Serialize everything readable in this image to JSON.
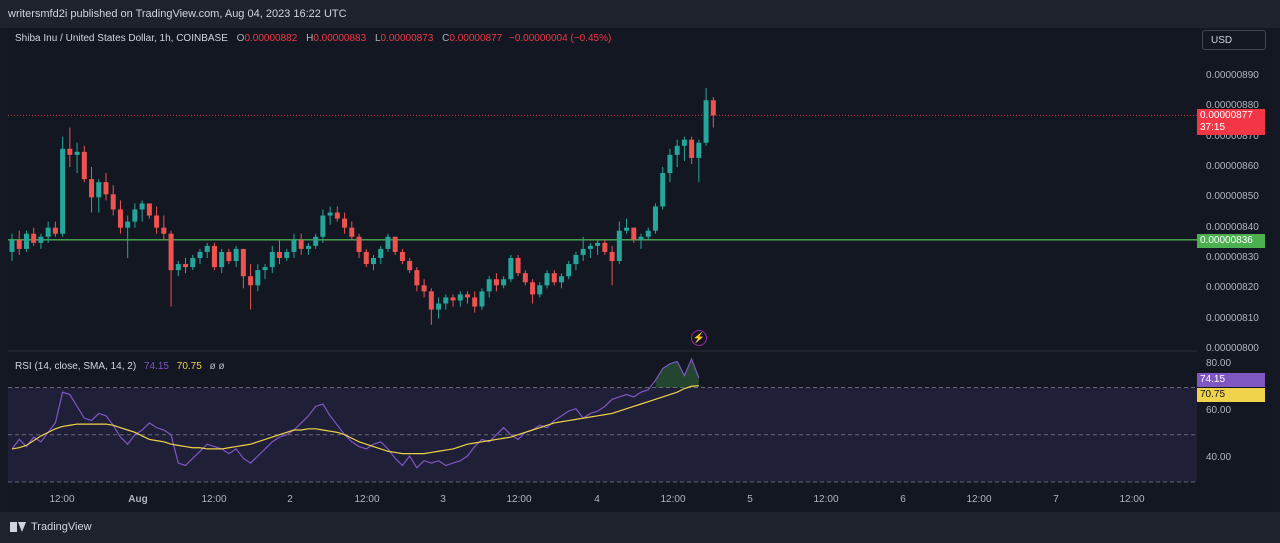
{
  "publish_line": "writersmfd2i published on TradingView.com, Aug 04, 2023 16:22 UTC",
  "legend": {
    "symbol": "Shiba Inu / United States Dollar, 1h, COINBASE",
    "o_label": "O",
    "o": "0.00000882",
    "h_label": "H",
    "h": "0.00000883",
    "l_label": "L",
    "l": "0.00000873",
    "c_label": "C",
    "c": "0.00000877",
    "change": "−0.00000004 (−0.45%)"
  },
  "currency_button": "USD",
  "price_tags": {
    "last": "0.00000877",
    "countdown": "37:15",
    "line": "0.00000836"
  },
  "rsi_legend": {
    "title": "RSI (14, close, SMA, 14, 2)",
    "rsi": "74.15",
    "sma": "70.75",
    "extra": "ø ø"
  },
  "rsi_tags": {
    "rsi": "74.15",
    "sma": "70.75"
  },
  "footer_logo": "TradingView",
  "flash_icon": "lightning-icon",
  "colors": {
    "up": "#26a69a",
    "down": "#ef5350",
    "horizontal_line": "#4caf50",
    "rsi": "#7e57c2",
    "rsi_ma": "#f0d34a",
    "rsi_band": "#2a2748"
  },
  "chart_data": [
    {
      "type": "candlestick",
      "y_ticks": [
        "0.00000890",
        "0.00000880",
        "0.00000870",
        "0.00000860",
        "0.00000850",
        "0.00000840",
        "0.00000830",
        "0.00000820",
        "0.00000810",
        "0.00000800"
      ],
      "ylim": [
        8e-06,
        8.9e-06
      ],
      "x_ticks": [
        "12:00",
        "Aug",
        "12:00",
        "2",
        "12:00",
        "3",
        "12:00",
        "4",
        "12:00",
        "5",
        "12:00",
        "6",
        "12:00",
        "7",
        "12:00"
      ],
      "horizontal_line": 8.36e-06,
      "last_price": 8.77e-06,
      "candles": [
        {
          "o": 8.32,
          "h": 8.38,
          "l": 8.29,
          "c": 8.36
        },
        {
          "o": 8.36,
          "h": 8.39,
          "l": 8.31,
          "c": 8.33
        },
        {
          "o": 8.33,
          "h": 8.39,
          "l": 8.32,
          "c": 8.38
        },
        {
          "o": 8.38,
          "h": 8.4,
          "l": 8.34,
          "c": 8.35
        },
        {
          "o": 8.35,
          "h": 8.38,
          "l": 8.33,
          "c": 8.37
        },
        {
          "o": 8.37,
          "h": 8.42,
          "l": 8.35,
          "c": 8.4
        },
        {
          "o": 8.4,
          "h": 8.42,
          "l": 8.37,
          "c": 8.38
        },
        {
          "o": 8.38,
          "h": 8.7,
          "l": 8.37,
          "c": 8.66
        },
        {
          "o": 8.66,
          "h": 8.73,
          "l": 8.6,
          "c": 8.64
        },
        {
          "o": 8.64,
          "h": 8.68,
          "l": 8.58,
          "c": 8.65
        },
        {
          "o": 8.65,
          "h": 8.67,
          "l": 8.55,
          "c": 8.56
        },
        {
          "o": 8.56,
          "h": 8.6,
          "l": 8.45,
          "c": 8.5
        },
        {
          "o": 8.5,
          "h": 8.56,
          "l": 8.45,
          "c": 8.55
        },
        {
          "o": 8.55,
          "h": 8.58,
          "l": 8.49,
          "c": 8.51
        },
        {
          "o": 8.51,
          "h": 8.54,
          "l": 8.44,
          "c": 8.46
        },
        {
          "o": 8.46,
          "h": 8.49,
          "l": 8.38,
          "c": 8.4
        },
        {
          "o": 8.4,
          "h": 8.44,
          "l": 8.3,
          "c": 8.42
        },
        {
          "o": 8.42,
          "h": 8.48,
          "l": 8.4,
          "c": 8.46
        },
        {
          "o": 8.46,
          "h": 8.49,
          "l": 8.42,
          "c": 8.48
        },
        {
          "o": 8.48,
          "h": 8.48,
          "l": 8.43,
          "c": 8.44
        },
        {
          "o": 8.44,
          "h": 8.47,
          "l": 8.38,
          "c": 8.4
        },
        {
          "o": 8.4,
          "h": 8.44,
          "l": 8.36,
          "c": 8.38
        },
        {
          "o": 8.38,
          "h": 8.39,
          "l": 8.14,
          "c": 8.26
        },
        {
          "o": 8.26,
          "h": 8.29,
          "l": 8.24,
          "c": 8.28
        },
        {
          "o": 8.28,
          "h": 8.3,
          "l": 8.25,
          "c": 8.27
        },
        {
          "o": 8.27,
          "h": 8.31,
          "l": 8.26,
          "c": 8.3
        },
        {
          "o": 8.3,
          "h": 8.33,
          "l": 8.28,
          "c": 8.32
        },
        {
          "o": 8.32,
          "h": 8.35,
          "l": 8.3,
          "c": 8.34
        },
        {
          "o": 8.34,
          "h": 8.35,
          "l": 8.26,
          "c": 8.27
        },
        {
          "o": 8.27,
          "h": 8.33,
          "l": 8.25,
          "c": 8.32
        },
        {
          "o": 8.32,
          "h": 8.33,
          "l": 8.28,
          "c": 8.29
        },
        {
          "o": 8.29,
          "h": 8.34,
          "l": 8.27,
          "c": 8.33
        },
        {
          "o": 8.33,
          "h": 8.33,
          "l": 8.2,
          "c": 8.24
        },
        {
          "o": 8.24,
          "h": 8.28,
          "l": 8.13,
          "c": 8.21
        },
        {
          "o": 8.21,
          "h": 8.28,
          "l": 8.19,
          "c": 8.26
        },
        {
          "o": 8.26,
          "h": 8.28,
          "l": 8.23,
          "c": 8.27
        },
        {
          "o": 8.27,
          "h": 8.34,
          "l": 8.25,
          "c": 8.32
        },
        {
          "o": 8.32,
          "h": 8.36,
          "l": 8.28,
          "c": 8.3
        },
        {
          "o": 8.3,
          "h": 8.33,
          "l": 8.29,
          "c": 8.32
        },
        {
          "o": 8.32,
          "h": 8.38,
          "l": 8.3,
          "c": 8.36
        },
        {
          "o": 8.36,
          "h": 8.38,
          "l": 8.31,
          "c": 8.33
        },
        {
          "o": 8.33,
          "h": 8.35,
          "l": 8.31,
          "c": 8.34
        },
        {
          "o": 8.34,
          "h": 8.38,
          "l": 8.33,
          "c": 8.37
        },
        {
          "o": 8.37,
          "h": 8.46,
          "l": 8.35,
          "c": 8.44
        },
        {
          "o": 8.44,
          "h": 8.47,
          "l": 8.41,
          "c": 8.45
        },
        {
          "o": 8.45,
          "h": 8.47,
          "l": 8.42,
          "c": 8.43
        },
        {
          "o": 8.43,
          "h": 8.45,
          "l": 8.38,
          "c": 8.4
        },
        {
          "o": 8.4,
          "h": 8.42,
          "l": 8.36,
          "c": 8.37
        },
        {
          "o": 8.37,
          "h": 8.38,
          "l": 8.3,
          "c": 8.32
        },
        {
          "o": 8.32,
          "h": 8.33,
          "l": 8.27,
          "c": 8.28
        },
        {
          "o": 8.28,
          "h": 8.31,
          "l": 8.26,
          "c": 8.3
        },
        {
          "o": 8.3,
          "h": 8.34,
          "l": 8.28,
          "c": 8.33
        },
        {
          "o": 8.33,
          "h": 8.38,
          "l": 8.32,
          "c": 8.37
        },
        {
          "o": 8.37,
          "h": 8.37,
          "l": 8.31,
          "c": 8.32
        },
        {
          "o": 8.32,
          "h": 8.33,
          "l": 8.28,
          "c": 8.29
        },
        {
          "o": 8.29,
          "h": 8.3,
          "l": 8.25,
          "c": 8.26
        },
        {
          "o": 8.26,
          "h": 8.27,
          "l": 8.19,
          "c": 8.21
        },
        {
          "o": 8.21,
          "h": 8.23,
          "l": 8.17,
          "c": 8.19
        },
        {
          "o": 8.19,
          "h": 8.2,
          "l": 8.08,
          "c": 8.13
        },
        {
          "o": 8.13,
          "h": 8.17,
          "l": 8.1,
          "c": 8.15
        },
        {
          "o": 8.15,
          "h": 8.18,
          "l": 8.13,
          "c": 8.17
        },
        {
          "o": 8.17,
          "h": 8.18,
          "l": 8.14,
          "c": 8.16
        },
        {
          "o": 8.16,
          "h": 8.19,
          "l": 8.14,
          "c": 8.18
        },
        {
          "o": 8.18,
          "h": 8.19,
          "l": 8.15,
          "c": 8.17
        },
        {
          "o": 8.17,
          "h": 8.19,
          "l": 8.12,
          "c": 8.14
        },
        {
          "o": 8.14,
          "h": 8.2,
          "l": 8.13,
          "c": 8.19
        },
        {
          "o": 8.19,
          "h": 8.24,
          "l": 8.17,
          "c": 8.23
        },
        {
          "o": 8.23,
          "h": 8.25,
          "l": 8.19,
          "c": 8.21
        },
        {
          "o": 8.21,
          "h": 8.24,
          "l": 8.2,
          "c": 8.23
        },
        {
          "o": 8.23,
          "h": 8.31,
          "l": 8.22,
          "c": 8.3
        },
        {
          "o": 8.3,
          "h": 8.31,
          "l": 8.24,
          "c": 8.25
        },
        {
          "o": 8.25,
          "h": 8.26,
          "l": 8.21,
          "c": 8.22
        },
        {
          "o": 8.22,
          "h": 8.23,
          "l": 8.15,
          "c": 8.18
        },
        {
          "o": 8.18,
          "h": 8.22,
          "l": 8.17,
          "c": 8.21
        },
        {
          "o": 8.21,
          "h": 8.26,
          "l": 8.2,
          "c": 8.25
        },
        {
          "o": 8.25,
          "h": 8.26,
          "l": 8.21,
          "c": 8.22
        },
        {
          "o": 8.22,
          "h": 8.25,
          "l": 8.2,
          "c": 8.24
        },
        {
          "o": 8.24,
          "h": 8.29,
          "l": 8.23,
          "c": 8.28
        },
        {
          "o": 8.28,
          "h": 8.32,
          "l": 8.26,
          "c": 8.31
        },
        {
          "o": 8.31,
          "h": 8.37,
          "l": 8.29,
          "c": 8.33
        },
        {
          "o": 8.33,
          "h": 8.35,
          "l": 8.3,
          "c": 8.34
        },
        {
          "o": 8.34,
          "h": 8.36,
          "l": 8.31,
          "c": 8.35
        },
        {
          "o": 8.35,
          "h": 8.36,
          "l": 8.31,
          "c": 8.32
        },
        {
          "o": 8.32,
          "h": 8.34,
          "l": 8.21,
          "c": 8.29
        },
        {
          "o": 8.29,
          "h": 8.42,
          "l": 8.28,
          "c": 8.39
        },
        {
          "o": 8.39,
          "h": 8.43,
          "l": 8.38,
          "c": 8.4
        },
        {
          "o": 8.4,
          "h": 8.4,
          "l": 8.35,
          "c": 8.36
        },
        {
          "o": 8.36,
          "h": 8.38,
          "l": 8.33,
          "c": 8.37
        },
        {
          "o": 8.37,
          "h": 8.4,
          "l": 8.36,
          "c": 8.39
        },
        {
          "o": 8.39,
          "h": 8.48,
          "l": 8.38,
          "c": 8.47
        },
        {
          "o": 8.47,
          "h": 8.6,
          "l": 8.46,
          "c": 8.58
        },
        {
          "o": 8.58,
          "h": 8.66,
          "l": 8.55,
          "c": 8.64
        },
        {
          "o": 8.64,
          "h": 8.69,
          "l": 8.6,
          "c": 8.67
        },
        {
          "o": 8.67,
          "h": 8.7,
          "l": 8.62,
          "c": 8.69
        },
        {
          "o": 8.69,
          "h": 8.7,
          "l": 8.61,
          "c": 8.63
        },
        {
          "o": 8.63,
          "h": 8.69,
          "l": 8.55,
          "c": 8.68
        },
        {
          "o": 8.68,
          "h": 8.86,
          "l": 8.67,
          "c": 8.82
        },
        {
          "o": 8.82,
          "h": 8.83,
          "l": 8.73,
          "c": 8.77
        }
      ]
    },
    {
      "type": "line",
      "title": "RSI (14, close, SMA, 14, 2)",
      "y_ticks": [
        "80.00",
        "60.00",
        "40.00"
      ],
      "ylim": [
        30,
        85
      ],
      "bands": [
        70,
        50,
        30
      ],
      "series": [
        {
          "name": "RSI",
          "values": [
            44,
            48,
            45,
            49,
            47,
            51,
            55,
            68,
            67,
            62,
            57,
            56,
            59,
            58,
            54,
            49,
            46,
            50,
            52,
            55,
            53,
            52,
            50,
            38,
            37,
            40,
            43,
            46,
            45,
            44,
            42,
            44,
            40,
            38,
            41,
            44,
            47,
            49,
            50,
            52,
            55,
            58,
            62,
            63,
            58,
            54,
            50,
            47,
            45,
            44,
            46,
            47,
            44,
            40,
            37,
            41,
            36,
            39,
            38,
            39,
            37,
            38,
            39,
            41,
            45,
            48,
            47,
            50,
            53,
            50,
            48,
            51,
            52,
            54,
            53,
            56,
            58,
            60,
            61,
            57,
            59,
            60,
            62,
            65,
            66,
            67,
            66,
            68,
            69,
            73,
            78,
            80,
            81,
            75,
            82,
            74
          ]
        },
        {
          "name": "SMA",
          "values": [
            44,
            44.5,
            45.5,
            47.5,
            49.5,
            51,
            52.5,
            53.5,
            54,
            54.5,
            54.5,
            54.5,
            54.5,
            54.5,
            54,
            53,
            52,
            51,
            49.5,
            48,
            47.5,
            47,
            46,
            45.5,
            45,
            44.5,
            44.5,
            44,
            44,
            44,
            44.5,
            45,
            45.5,
            46,
            47,
            48,
            49,
            50,
            51,
            52,
            52,
            52.5,
            52.5,
            52,
            51.5,
            51,
            50,
            48.5,
            47,
            46,
            45,
            44,
            43,
            42.5,
            42,
            42,
            42,
            42,
            42.5,
            43,
            43.5,
            44,
            45,
            46,
            46.5,
            47,
            47.5,
            48,
            48.5,
            49,
            50,
            51,
            52,
            53,
            54,
            55,
            55.5,
            56,
            56.5,
            57,
            57.5,
            58,
            58.5,
            59,
            60,
            61,
            62,
            63,
            64,
            65,
            66,
            67,
            68,
            69.5,
            70.5,
            70.75
          ]
        }
      ]
    }
  ]
}
